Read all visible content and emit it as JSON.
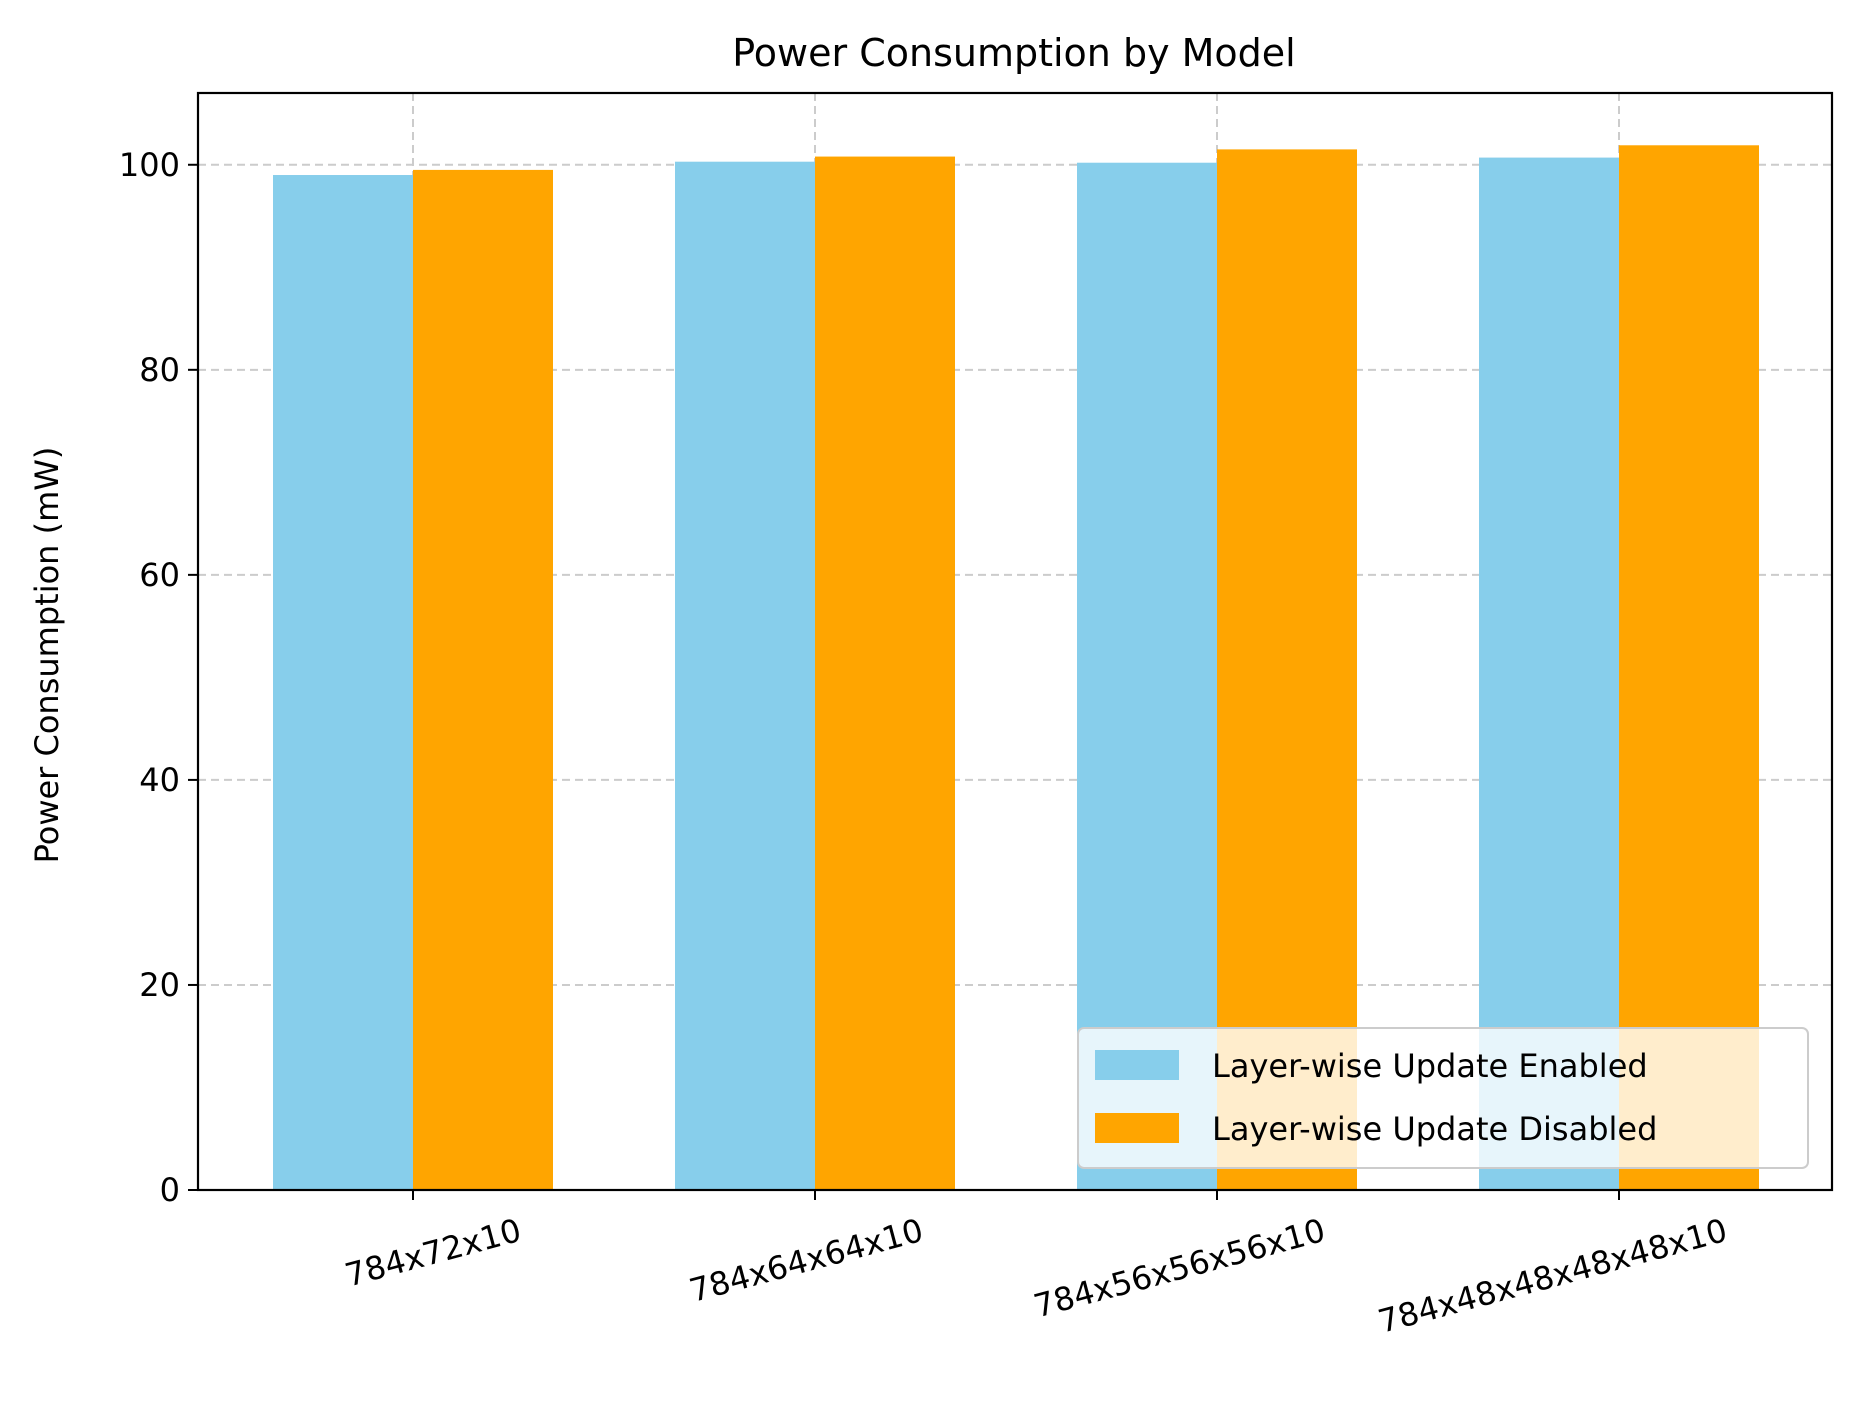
{
  "chart_data": {
    "type": "bar",
    "title": "Power Consumption by Model",
    "xlabel": "",
    "ylabel": "Power Consumption (mW)",
    "categories": [
      "784x72x10",
      "784x64x64x10",
      "784x56x56x56x10",
      "784x48x48x48x48x10"
    ],
    "series": [
      {
        "name": "Layer-wise Update Enabled",
        "color": "#87CEEB",
        "values": [
          99.0,
          100.3,
          100.2,
          100.7
        ]
      },
      {
        "name": "Layer-wise Update Disabled",
        "color": "#FFA500",
        "values": [
          99.5,
          100.8,
          101.5,
          101.9
        ]
      }
    ],
    "ylim": [
      0,
      107
    ],
    "yticks": [
      0,
      20,
      40,
      60,
      80,
      100
    ],
    "grid": true,
    "legend_position": "lower right",
    "xtick_rotation": "15 degrees"
  }
}
